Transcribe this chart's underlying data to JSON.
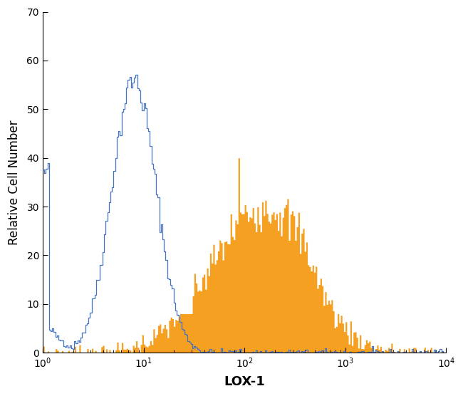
{
  "title": "",
  "xlabel": "LOX-1",
  "ylabel": "Relative Cell Number",
  "xlim_log": [
    1,
    10000
  ],
  "ylim": [
    0,
    70
  ],
  "yticks": [
    0,
    10,
    20,
    30,
    40,
    50,
    60,
    70
  ],
  "background_color": "#ffffff",
  "blue_color": "#4472c4",
  "orange_color": "#f5a020",
  "xlabel_fontsize": 13,
  "ylabel_fontsize": 12,
  "n_bins": 256
}
